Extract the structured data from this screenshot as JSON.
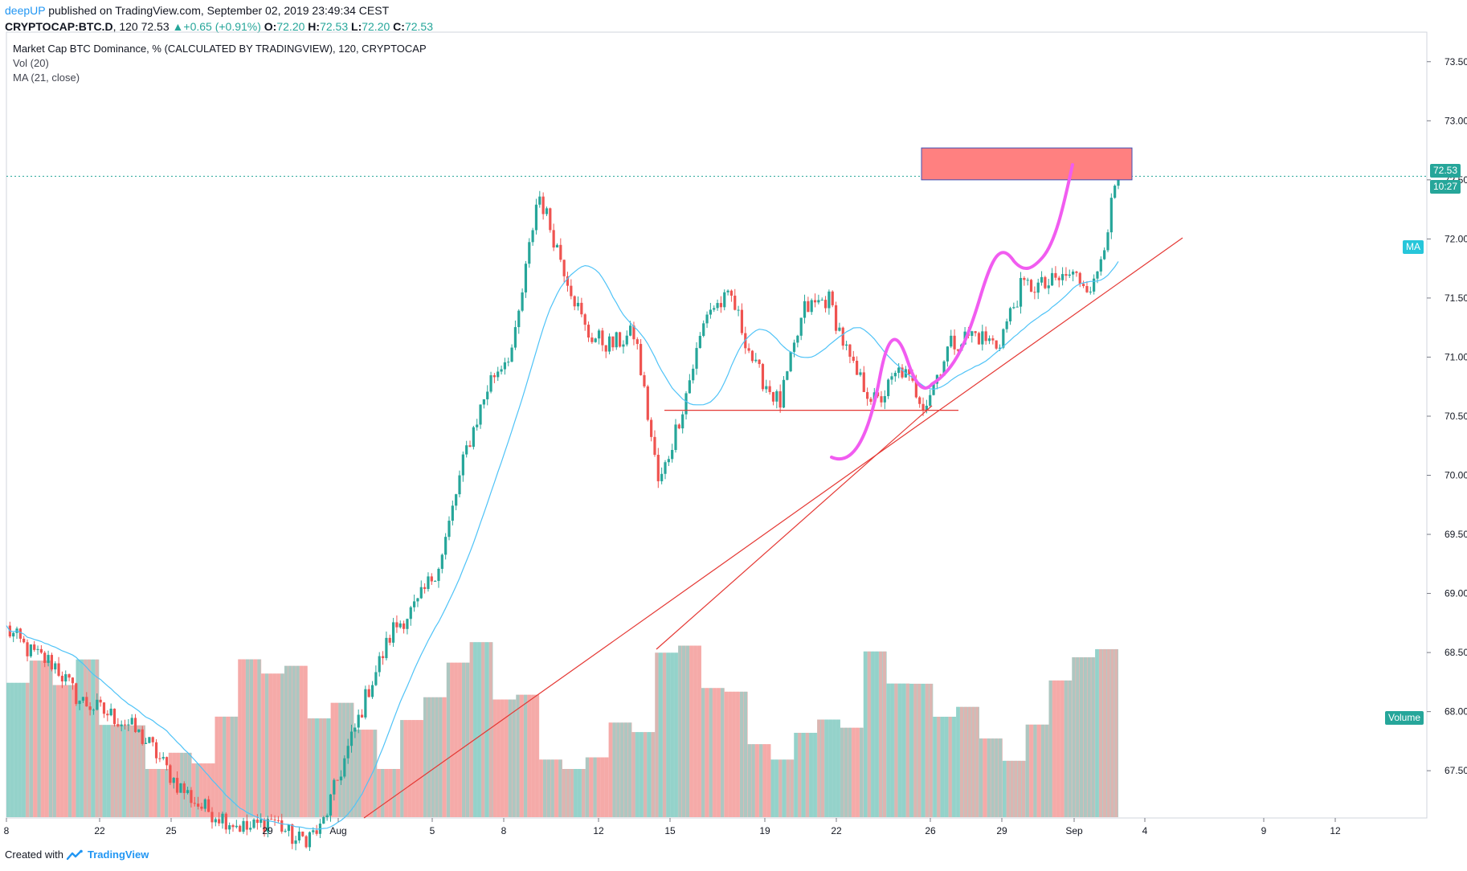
{
  "header": {
    "author": "deepUP",
    "published_text": "published on TradingView.com, September 02, 2019 23:49:34 CEST",
    "ticker": "CRYPTOCAP:BTC.D",
    "interval": "120",
    "last_price": "72.53",
    "change": "+0.65 (+0.91%)",
    "change_arrow": "▲",
    "o_label": "O:",
    "o_val": "72.20",
    "h_label": "H:",
    "h_val": "72.53",
    "l_label": "L:",
    "l_val": "72.20",
    "c_label": "C:",
    "c_val": "72.53"
  },
  "legend": {
    "title": "Market Cap BTC Dominance, % (CALCULATED BY TRADINGVIEW), 120, CRYPTOCAP",
    "vol": "Vol (20)",
    "ma": "MA (21, close)"
  },
  "tags": {
    "last_price": "72.53",
    "countdown": "10:27",
    "ma": "MA",
    "volume": "Volume"
  },
  "footer": {
    "created_with": "Created with",
    "brand": "TradingView"
  },
  "colors": {
    "up": "#26a69a",
    "down": "#ef5350",
    "ma": "#4fc3f7",
    "vol_up": "#8fd0c8",
    "vol_down": "#f5a6a4",
    "trendline": "#e53935",
    "annotation": "#f15cf0",
    "zone": "#ff8080",
    "price_line": "#26a69a"
  },
  "chart_data": {
    "type": "candlestick",
    "title": "Market Cap BTC Dominance, % (CALCULATED BY TRADINGVIEW), 120, CRYPTOCAP",
    "y_axis": {
      "ticks": [
        "73.50",
        "73.00",
        "72.50",
        "72.00",
        "71.50",
        "71.00",
        "70.50",
        "70.00",
        "69.50",
        "69.00",
        "68.50",
        "68.00",
        "67.50"
      ],
      "ylim": [
        67.1,
        73.75
      ],
      "position": "right"
    },
    "x_axis": {
      "ticks": [
        "8",
        "22",
        "25",
        "29",
        "Aug",
        "5",
        "8",
        "12",
        "15",
        "19",
        "22",
        "26",
        "29",
        "Sep",
        "4",
        "9",
        "12"
      ]
    },
    "price_path": [
      [
        "Jul 18",
        68.7
      ],
      [
        "Jul 19",
        68.5
      ],
      [
        "Jul 20",
        68.4
      ],
      [
        "Jul 21",
        68.1
      ],
      [
        "Jul 22",
        68.0
      ],
      [
        "Jul 23",
        67.9
      ],
      [
        "Jul 24",
        67.7
      ],
      [
        "Jul 25",
        67.4
      ],
      [
        "Jul 26",
        67.2
      ],
      [
        "Jul 27",
        67.1
      ],
      [
        "Jul 28",
        67.0
      ],
      [
        "Jul 29",
        67.1
      ],
      [
        "Jul 30",
        66.9
      ],
      [
        "Jul 31",
        67.0
      ],
      [
        "Aug 1",
        67.6
      ],
      [
        "Aug 2",
        68.2
      ],
      [
        "Aug 3",
        68.7
      ],
      [
        "Aug 4",
        68.9
      ],
      [
        "Aug 5",
        69.3
      ],
      [
        "Aug 6",
        70.2
      ],
      [
        "Aug 7",
        70.8
      ],
      [
        "Aug 8",
        71.1
      ],
      [
        "Aug 9",
        72.4
      ],
      [
        "Aug 10",
        71.8
      ],
      [
        "Aug 11",
        71.2
      ],
      [
        "Aug 12",
        71.1
      ],
      [
        "Aug 13",
        71.2
      ],
      [
        "Aug 14",
        69.9
      ],
      [
        "Aug 15",
        70.6
      ],
      [
        "Aug 16",
        71.4
      ],
      [
        "Aug 17",
        71.5
      ],
      [
        "Aug 18",
        70.9
      ],
      [
        "Aug 19",
        70.6
      ],
      [
        "Aug 20",
        71.4
      ],
      [
        "Aug 21",
        71.5
      ],
      [
        "Aug 22",
        70.9
      ],
      [
        "Aug 23",
        70.6
      ],
      [
        "Aug 24",
        70.9
      ],
      [
        "Aug 25",
        70.6
      ],
      [
        "Aug 26",
        71.1
      ],
      [
        "Aug 27",
        71.2
      ],
      [
        "Aug 28",
        71.1
      ],
      [
        "Aug 29",
        71.6
      ],
      [
        "Aug 30",
        71.6
      ],
      [
        "Aug 31",
        71.7
      ],
      [
        "Sep 1",
        71.6
      ],
      [
        "Sep 2",
        72.53
      ]
    ],
    "last_price": 72.53,
    "resistance_zone": [
      72.2,
      72.5
    ],
    "support_level": 70.55,
    "series": [
      {
        "name": "Vol (20)",
        "type": "volume"
      },
      {
        "name": "MA (21, close)",
        "type": "line"
      }
    ]
  }
}
